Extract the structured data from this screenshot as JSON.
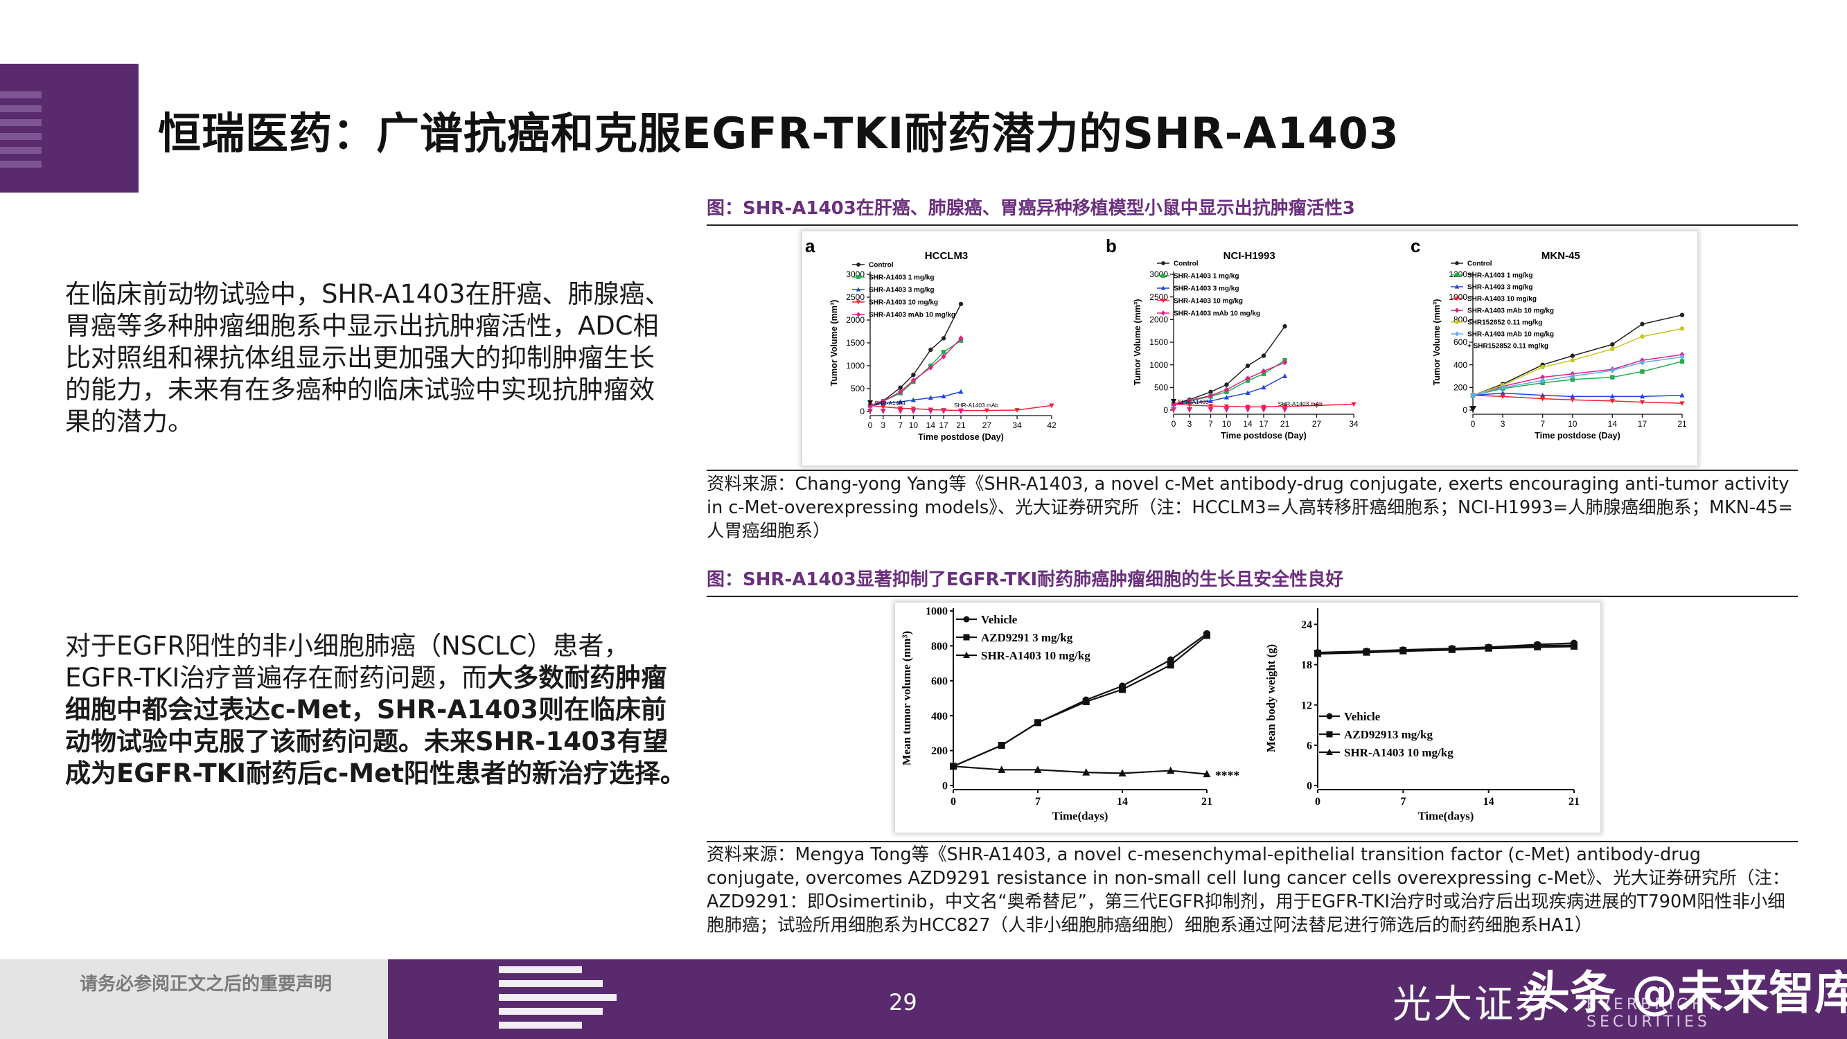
{
  "header": {
    "title": "恒瑞医药：广谱抗癌和克服EGFR-TKI耐药潜力的SHR-A1403"
  },
  "left": {
    "para1": "在临床前动物试验中，SHR-A1403在肝癌、肺腺癌、胃癌等多种肿瘤细胞系中显示出抗肿瘤活性，ADC相比对照组和裸抗体组显示出更加强大的抑制肿瘤生长的能力，未来有在多癌种的临床试验中实现抗肿瘤效果的潜力。",
    "para2_normal": "对于EGFR阳性的非小细胞肺癌（NSCLC）患者，EGFR-TKI治疗普遍存在耐药问题，而",
    "para2_bold": "大多数耐药肿瘤细胞中都会过表达c-Met，SHR-A1403则在临床前动物试验中克服了该耐药问题。未来SHR-1403有望成为EGFR-TKI耐药后c-Met阳性患者的新治疗选择。"
  },
  "figure1": {
    "caption": "图：SHR-A1403在肝癌、肺腺癌、胃癌异种移植模型小鼠中显示出抗肿瘤活性3",
    "source": "资料来源：Chang-yong Yang等《SHR-A1403, a novel c-Met antibody-drug conjugate, exerts encouraging anti-tumor activity in c-Met-overexpressing models》、光大证券研究所（注：HCCLM3=人高转移肝癌细胞系；NCI-H1993=人肺腺癌细胞系；MKN-45=人胃癌细胞系）"
  },
  "figure2": {
    "caption": "图：SHR-A1403显著抑制了EGFR-TKI耐药肺癌肿瘤细胞的生长且安全性良好",
    "source": "资料来源：Mengya Tong等《SHR-A1403, a novel c-mesenchymal-epithelial transition factor (c-Met) antibody-drug conjugate, overcomes AZD9291 resistance in non-small cell lung cancer cells overexpressing c-Met》、光大证券研究所（注：AZD9291：即Osimertinib，中文名“奥希替尼”，第三代EGFR抑制剂，用于EGFR-TKI治疗时或治疗后出现疾病进展的T790M阳性非小细胞肺癌；试验所用细胞系为HCC827（人非小细胞肺癌细胞）细胞系通过阿法替尼进行筛选后的耐药细胞系HA1）"
  },
  "footer": {
    "note": "请务必参阅正文之后的重要声明",
    "page": "29",
    "brand": "光大证券",
    "watermark": "头条 @未来智库",
    "en_brand": "EVERBRIGHT SECURITIES"
  },
  "chart_data": [
    {
      "type": "line",
      "panel": "a",
      "title": "HCCLM3",
      "xlabel": "Time postdose (Day)",
      "ylabel": "Tumor Volume (mm³)",
      "xticks": [
        0,
        3,
        7,
        10,
        14,
        17,
        21,
        27,
        34,
        42
      ],
      "yticks": [
        0,
        500,
        1000,
        1500,
        2000,
        2500,
        3000
      ],
      "ylim": [
        0,
        3000
      ],
      "dose_marks": {
        "SHR-A1403": [
          0
        ],
        "SHR-A1403 mAb": [
          0,
          3,
          7,
          10,
          14,
          17,
          21
        ]
      },
      "dose_labels": [
        "SHR-A1403",
        "SHR-A1403 mAb"
      ],
      "series": [
        {
          "name": "Control",
          "color": "#222222",
          "marker": "circle",
          "x": [
            0,
            3,
            7,
            10,
            14,
            17,
            21
          ],
          "values": [
            130,
            230,
            520,
            800,
            1350,
            1600,
            2350
          ]
        },
        {
          "name": "SHR-A1403 1 mg/kg",
          "color": "#22b04a",
          "marker": "square",
          "x": [
            0,
            3,
            7,
            10,
            14,
            17,
            21
          ],
          "values": [
            130,
            220,
            400,
            650,
            1000,
            1300,
            1550
          ]
        },
        {
          "name": "SHR-A1403 3 mg/kg",
          "color": "#2244dd",
          "marker": "triangle",
          "x": [
            0,
            3,
            7,
            10,
            14,
            17,
            21
          ],
          "values": [
            130,
            180,
            210,
            250,
            300,
            330,
            430
          ]
        },
        {
          "name": "SHR-A1403 10 mg/kg",
          "color": "#ee2233",
          "marker": "triangle-down",
          "x": [
            0,
            3,
            7,
            10,
            14,
            17,
            21,
            27,
            34,
            42
          ],
          "values": [
            130,
            100,
            70,
            60,
            40,
            30,
            20,
            20,
            30,
            130
          ]
        },
        {
          "name": "SHR-A1403 mAb 10 mg/kg",
          "color": "#dd2288",
          "marker": "diamond",
          "x": [
            0,
            3,
            7,
            10,
            14,
            17,
            21
          ],
          "values": [
            130,
            220,
            430,
            680,
            960,
            1200,
            1600
          ]
        }
      ]
    },
    {
      "type": "line",
      "panel": "b",
      "title": "NCI-H1993",
      "xlabel": "Time postdose (Day)",
      "ylabel": "Tumor Volume (mm³)",
      "xticks": [
        0,
        3,
        7,
        10,
        14,
        17,
        21,
        27,
        34
      ],
      "yticks": [
        0,
        500,
        1000,
        1500,
        2000,
        2500,
        3000
      ],
      "ylim": [
        0,
        3000
      ],
      "dose_marks": {
        "SHR-A1403": [
          0
        ],
        "SHR-A1403 mAb": [
          0,
          3,
          7,
          10,
          14,
          17,
          21
        ]
      },
      "dose_labels": [
        "SHR-A1403",
        "SHR-A1403 mAb"
      ],
      "series": [
        {
          "name": "Control",
          "color": "#222222",
          "marker": "circle",
          "x": [
            0,
            3,
            7,
            10,
            14,
            17,
            21
          ],
          "values": [
            130,
            230,
            400,
            560,
            980,
            1200,
            1850
          ]
        },
        {
          "name": "SHR-A1403 1 mg/kg",
          "color": "#22b04a",
          "marker": "square",
          "x": [
            0,
            3,
            7,
            10,
            14,
            17,
            21
          ],
          "values": [
            130,
            200,
            300,
            400,
            650,
            800,
            1100
          ]
        },
        {
          "name": "SHR-A1403 3 mg/kg",
          "color": "#2244dd",
          "marker": "triangle",
          "x": [
            0,
            3,
            7,
            10,
            14,
            17,
            21
          ],
          "values": [
            130,
            160,
            200,
            280,
            380,
            500,
            750
          ]
        },
        {
          "name": "SHR-A1403 10 mg/kg",
          "color": "#ee2233",
          "marker": "triangle-down",
          "x": [
            0,
            3,
            7,
            10,
            14,
            17,
            21,
            27,
            34
          ],
          "values": [
            130,
            110,
            90,
            80,
            70,
            70,
            80,
            100,
            130
          ]
        },
        {
          "name": "SHR-A1403 mAb 10 mg/kg",
          "color": "#dd2288",
          "marker": "diamond",
          "x": [
            0,
            3,
            7,
            10,
            14,
            17,
            21
          ],
          "values": [
            130,
            210,
            320,
            450,
            700,
            860,
            1050
          ]
        }
      ]
    },
    {
      "type": "line",
      "panel": "c",
      "title": "MKN-45",
      "xlabel": "Time postdose (Day)",
      "ylabel": "Tumor Volume (mm³)",
      "xticks": [
        0,
        3,
        7,
        10,
        14,
        17,
        21
      ],
      "yticks": [
        0,
        200,
        400,
        600,
        800,
        1000,
        1200
      ],
      "ylim": [
        0,
        1200
      ],
      "dose_marks": {
        "all": [
          0
        ]
      },
      "series": [
        {
          "name": "Control",
          "color": "#222222",
          "marker": "circle",
          "x": [
            0,
            3,
            7,
            10,
            14,
            17,
            21
          ],
          "values": [
            130,
            230,
            400,
            480,
            580,
            760,
            840
          ]
        },
        {
          "name": "SHR-A1403 1 mg/kg",
          "color": "#22b04a",
          "marker": "square",
          "x": [
            0,
            3,
            7,
            10,
            14,
            17,
            21
          ],
          "values": [
            130,
            190,
            240,
            270,
            290,
            340,
            430
          ]
        },
        {
          "name": "SHR-A1403 3 mg/kg",
          "color": "#2244dd",
          "marker": "triangle",
          "x": [
            0,
            3,
            7,
            10,
            14,
            17,
            21
          ],
          "values": [
            130,
            150,
            130,
            120,
            120,
            120,
            130
          ]
        },
        {
          "name": "SHR-A1403 10 mg/kg",
          "color": "#ee2233",
          "marker": "triangle-down",
          "x": [
            0,
            3,
            7,
            10,
            14,
            17,
            21
          ],
          "values": [
            130,
            120,
            100,
            90,
            80,
            70,
            60
          ]
        },
        {
          "name": "SHR-A1403 mAb 10 mg/kg",
          "color": "#dd2288",
          "marker": "diamond",
          "x": [
            0,
            3,
            7,
            10,
            14,
            17,
            21
          ],
          "values": [
            130,
            210,
            290,
            320,
            360,
            440,
            490
          ]
        },
        {
          "name": "SHR152852 0.11 mg/kg",
          "color": "#c8c820",
          "marker": "circle",
          "x": [
            0,
            3,
            7,
            10,
            14,
            17,
            21
          ],
          "values": [
            130,
            220,
            380,
            440,
            540,
            650,
            720
          ]
        },
        {
          "name": "SHR-A1403 mAb 10 mg/kg + SHR152852 0.11 mg/kg",
          "color": "#66aaee",
          "marker": "diamond",
          "x": [
            0,
            3,
            7,
            10,
            14,
            17,
            21
          ],
          "values": [
            130,
            200,
            260,
            300,
            350,
            420,
            470
          ]
        }
      ]
    },
    {
      "type": "line",
      "title": "",
      "xlabel": "Time(days)",
      "ylabel": "Mean tumor  volume (mm³)",
      "xticks": [
        0,
        7,
        14,
        21
      ],
      "yticks": [
        0,
        200,
        400,
        600,
        800,
        1000
      ],
      "ylim": [
        0,
        1000
      ],
      "annotation": "****",
      "series": [
        {
          "name": "Vehicle",
          "color": "#111111",
          "marker": "circle",
          "x": [
            0,
            4,
            7,
            11,
            14,
            18,
            21
          ],
          "values": [
            110,
            230,
            360,
            490,
            570,
            720,
            870
          ]
        },
        {
          "name": "AZD9291 3 mg/kg",
          "color": "#111111",
          "marker": "square",
          "x": [
            0,
            4,
            7,
            11,
            14,
            18,
            21
          ],
          "values": [
            110,
            230,
            360,
            480,
            550,
            690,
            860
          ]
        },
        {
          "name": "SHR-A1403 10 mg/kg",
          "color": "#111111",
          "marker": "triangle",
          "x": [
            0,
            4,
            7,
            11,
            14,
            18,
            21
          ],
          "values": [
            110,
            90,
            90,
            75,
            70,
            85,
            65
          ]
        }
      ]
    },
    {
      "type": "line",
      "title": "",
      "xlabel": "Time(days)",
      "ylabel": "Mean body weight (g)",
      "xticks": [
        0,
        7,
        14,
        21
      ],
      "yticks": [
        0,
        6,
        12,
        18,
        24
      ],
      "ylim": [
        0,
        26
      ],
      "series": [
        {
          "name": "Vehicle",
          "color": "#111111",
          "marker": "circle",
          "x": [
            0,
            4,
            7,
            11,
            14,
            18,
            21
          ],
          "values": [
            19.8,
            20.0,
            20.2,
            20.4,
            20.6,
            21.0,
            21.2
          ]
        },
        {
          "name": "AZD92913 mg/kg",
          "color": "#111111",
          "marker": "square",
          "x": [
            0,
            4,
            7,
            11,
            14,
            18,
            21
          ],
          "values": [
            19.7,
            19.9,
            20.1,
            20.3,
            20.5,
            20.8,
            20.9
          ]
        },
        {
          "name": "SHR-A1403 10 mg/kg",
          "color": "#111111",
          "marker": "triangle",
          "x": [
            0,
            4,
            7,
            11,
            14,
            18,
            21
          ],
          "values": [
            19.6,
            19.8,
            20.0,
            20.2,
            20.4,
            20.6,
            20.7
          ]
        }
      ]
    }
  ]
}
